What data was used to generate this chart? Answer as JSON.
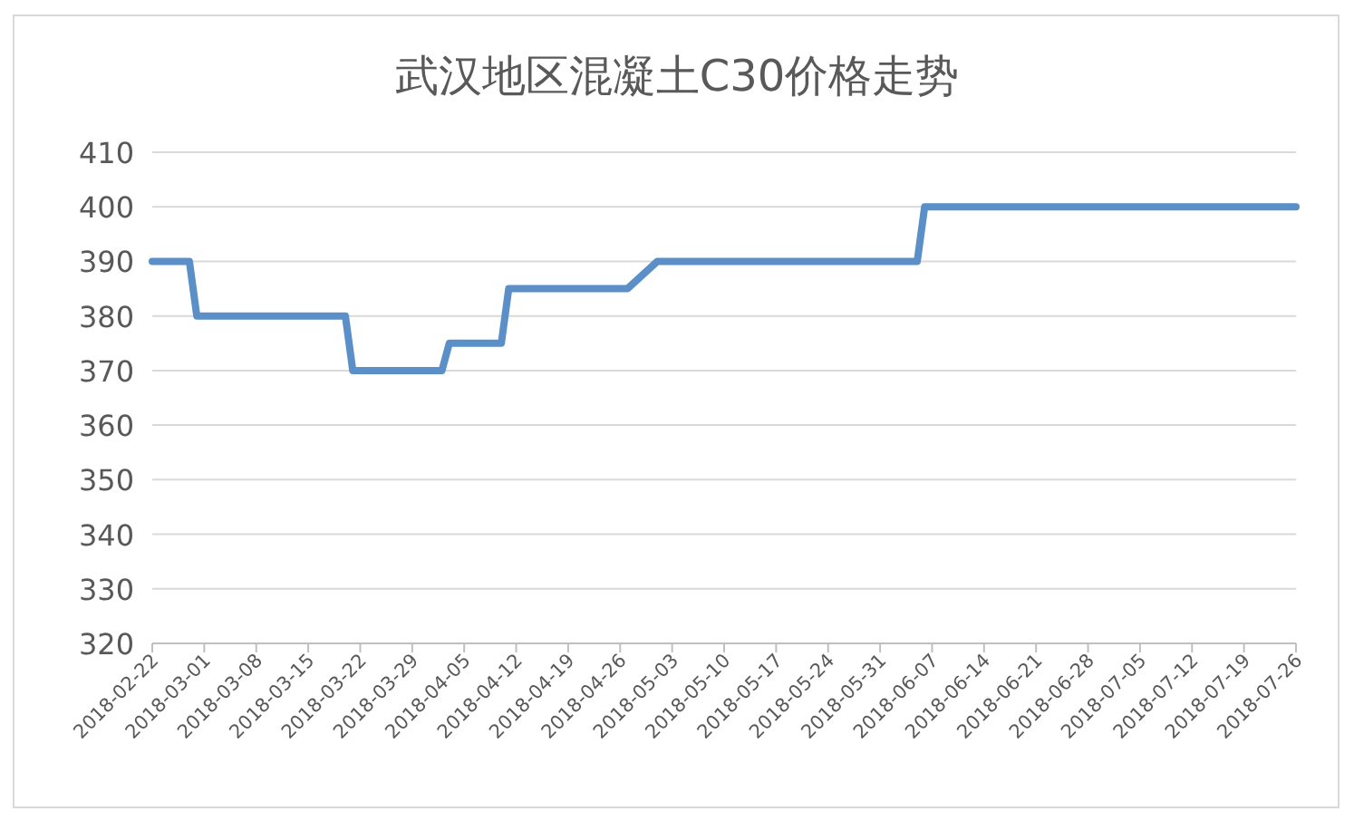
{
  "chart_data": {
    "type": "line",
    "title": "武汉地区混凝土C30价格走势",
    "series": [
      {
        "color": "#5b8fc7",
        "x": [
          "2018-02-22",
          "2018-02-27",
          "2018-02-28",
          "2018-03-20",
          "2018-03-21",
          "2018-04-02",
          "2018-04-03",
          "2018-04-10",
          "2018-04-11",
          "2018-04-27",
          "2018-05-01",
          "2018-06-05",
          "2018-06-06",
          "2018-07-26"
        ],
        "values": [
          390,
          390,
          380,
          380,
          370,
          370,
          375,
          375,
          385,
          385,
          390,
          390,
          400,
          400
        ]
      }
    ],
    "xlim": [
      "2018-02-22",
      "2018-07-26"
    ],
    "xticks": [
      "2018-02-22",
      "2018-03-01",
      "2018-03-08",
      "2018-03-15",
      "2018-03-22",
      "2018-03-29",
      "2018-04-05",
      "2018-04-12",
      "2018-04-19",
      "2018-04-26",
      "2018-05-03",
      "2018-05-10",
      "2018-05-17",
      "2018-05-24",
      "2018-05-31",
      "2018-06-07",
      "2018-06-14",
      "2018-06-21",
      "2018-06-28",
      "2018-07-05",
      "2018-07-12",
      "2018-07-19",
      "2018-07-26"
    ],
    "ylim": [
      320,
      410
    ],
    "yticks": [
      320,
      330,
      340,
      350,
      360,
      370,
      380,
      390,
      400,
      410
    ],
    "grid": "y",
    "marker": "none",
    "line_style": "solid"
  }
}
